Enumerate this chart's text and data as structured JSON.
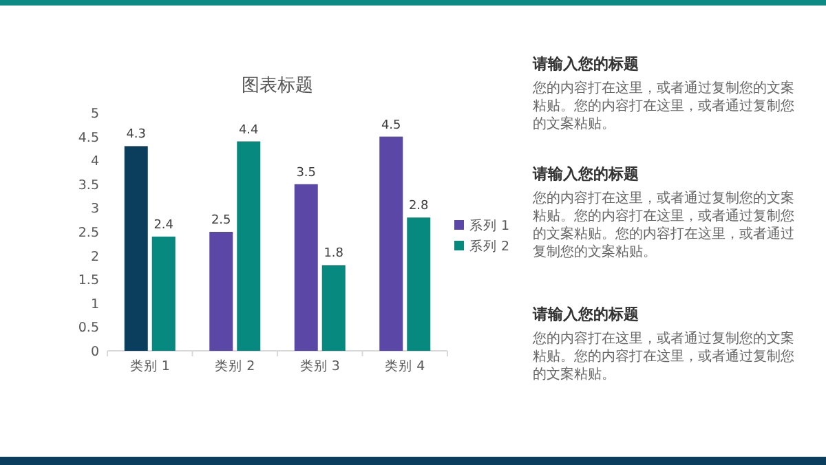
{
  "chart_data": {
    "type": "bar",
    "title": "图表标题",
    "categories": [
      "类别 1",
      "类别 2",
      "类别 3",
      "类别 4"
    ],
    "series": [
      {
        "name": "系列 1",
        "color": "#5b47a6",
        "colors": [
          "#0b3d5c",
          "#5b47a6",
          "#5b47a6",
          "#5b47a6"
        ],
        "values": [
          4.3,
          2.5,
          3.5,
          4.5
        ]
      },
      {
        "name": "系列 2",
        "color": "#07897f",
        "values": [
          2.4,
          4.4,
          1.8,
          2.8
        ]
      }
    ],
    "ylim": [
      0,
      5
    ],
    "yticks": [
      0,
      0.5,
      1,
      1.5,
      2,
      2.5,
      3,
      3.5,
      4,
      4.5,
      5
    ],
    "grid": false,
    "legend": "right",
    "data_labels": true,
    "annotations": [
      "请输入您的标题",
      "您的内容打在这里，或者通过复制您的文案粘贴。您的内容打在这里，或者通过复制您的文案粘贴。",
      "请输入您的标题",
      "您的内容打在这里，或者通过复制您的文案粘贴。您的内容打在这里，或者通过复制您的文案粘贴。您的内容打在这里，或者通过复制您的文案粘贴。",
      "请输入您的标题",
      "您的内容打在这里，或者通过复制您的文案粘贴。您的内容打在这里，或者通过复制您的文案粘贴。"
    ]
  }
}
